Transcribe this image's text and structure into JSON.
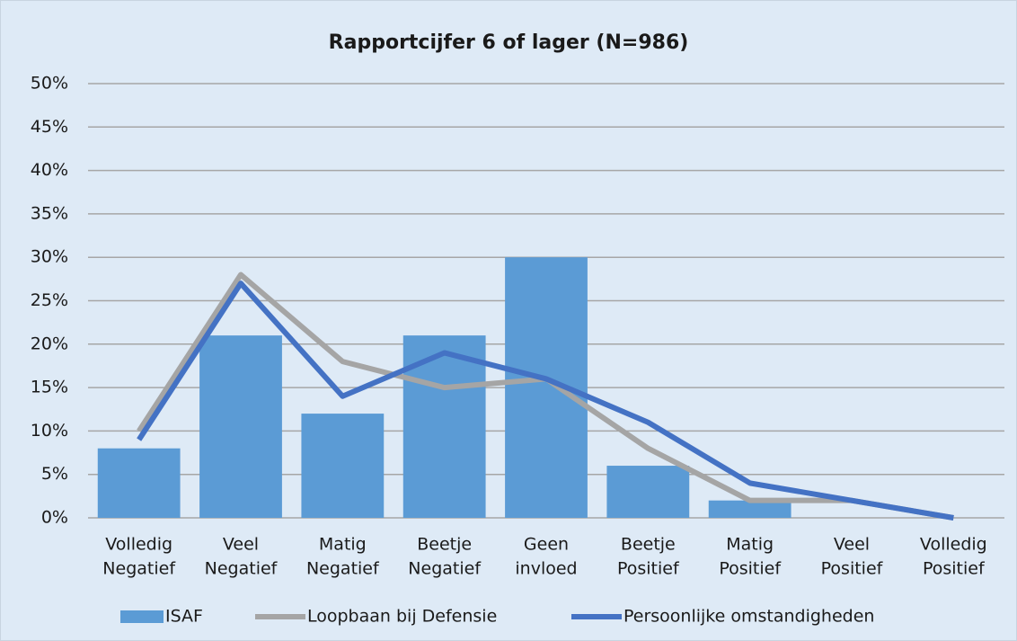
{
  "chart_data": {
    "type": "bar",
    "title": "Rapportcijfer 6 of lager (N=986)",
    "categories": [
      [
        "Volledig",
        "Negatief"
      ],
      [
        "Veel",
        "Negatief"
      ],
      [
        "Matig",
        "Negatief"
      ],
      [
        "Beetje",
        "Negatief"
      ],
      [
        "Geen",
        "invloed"
      ],
      [
        "Beetje",
        "Positief"
      ],
      [
        "Matig",
        "Positief"
      ],
      [
        "Veel",
        "Positief"
      ],
      [
        "Volledig",
        "Positief"
      ]
    ],
    "series": [
      {
        "name": "ISAF",
        "type": "bar",
        "color": "#5b9bd5",
        "values": [
          8,
          21,
          12,
          21,
          30,
          6,
          2,
          0,
          0
        ]
      },
      {
        "name": "Loopbaan bij Defensie",
        "type": "line",
        "color": "#a5a5a5",
        "values": [
          10,
          28,
          18,
          15,
          16,
          8,
          2,
          2,
          0
        ]
      },
      {
        "name": "Persoonlijke omstandigheden",
        "type": "line",
        "color": "#4472c4",
        "values": [
          9,
          27,
          14,
          19,
          16,
          11,
          4,
          2,
          0
        ]
      }
    ],
    "ylim": [
      0,
      50
    ],
    "yticks": [
      {
        "value": 0,
        "label": "0%"
      },
      {
        "value": 5,
        "label": "5%"
      },
      {
        "value": 10,
        "label": "10%"
      },
      {
        "value": 15,
        "label": "15%"
      },
      {
        "value": 20,
        "label": "20%"
      },
      {
        "value": 25,
        "label": "25%"
      },
      {
        "value": 30,
        "label": "30%"
      },
      {
        "value": 35,
        "label": "35%"
      },
      {
        "value": 40,
        "label": "40%"
      },
      {
        "value": 45,
        "label": "45%"
      },
      {
        "value": 50,
        "label": "50%"
      }
    ],
    "grid": true,
    "legend": "bottom"
  }
}
